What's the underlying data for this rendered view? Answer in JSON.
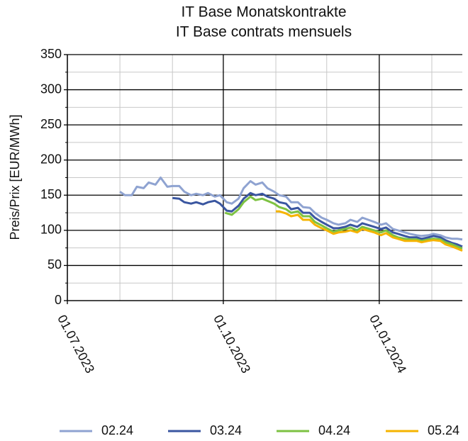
{
  "chart_data": {
    "type": "line",
    "title": "IT Base Monatskontrakte",
    "subtitle": "IT Base contrats mensuels",
    "y_label": "Preis/Prix [EUR/MWh]",
    "xlim": [
      "01.07.2023",
      "19.02.2024"
    ],
    "xticks": [
      "01.07.2023",
      "01.10.2023",
      "01.01.2024"
    ],
    "xminorticks": [
      "01.08.2023",
      "01.09.2023",
      "01.11.2023",
      "01.12.2023",
      "01.02.2024"
    ],
    "ylim": [
      0,
      350
    ],
    "yticks": [
      0,
      50,
      100,
      150,
      200,
      250,
      300,
      350
    ],
    "yminorticks": [
      25,
      75,
      125,
      175,
      225,
      275,
      325
    ],
    "grid": true,
    "legend": "bottom",
    "series": [
      {
        "name": "02.24",
        "color": "#8fa3d1",
        "x": [
          "01.08.2023",
          "04.08.2023",
          "08.08.2023",
          "11.08.2023",
          "15.08.2023",
          "18.08.2023",
          "22.08.2023",
          "25.08.2023",
          "29.08.2023",
          "01.09.2023",
          "05.09.2023",
          "08.09.2023",
          "12.09.2023",
          "15.09.2023",
          "19.09.2023",
          "22.09.2023",
          "26.09.2023",
          "29.09.2023",
          "03.10.2023",
          "06.10.2023",
          "10.10.2023",
          "13.10.2023",
          "17.10.2023",
          "20.10.2023",
          "24.10.2023",
          "27.10.2023",
          "31.10.2023",
          "03.11.2023",
          "07.11.2023",
          "10.11.2023",
          "14.11.2023",
          "17.11.2023",
          "21.11.2023",
          "24.11.2023",
          "28.11.2023",
          "01.12.2023",
          "05.12.2023",
          "08.12.2023",
          "12.12.2023",
          "15.12.2023",
          "19.12.2023",
          "22.12.2023",
          "29.12.2023",
          "02.01.2024",
          "05.01.2024",
          "09.01.2024",
          "12.01.2024",
          "16.01.2024",
          "19.01.2024",
          "23.01.2024",
          "26.01.2024",
          "30.01.2024",
          "02.02.2024",
          "06.02.2024",
          "09.02.2024",
          "13.02.2024",
          "16.02.2024",
          "19.02.2024"
        ],
        "values": [
          155,
          150,
          150,
          162,
          160,
          168,
          165,
          175,
          162,
          163,
          163,
          155,
          150,
          152,
          150,
          153,
          148,
          150,
          140,
          138,
          145,
          160,
          170,
          165,
          168,
          160,
          155,
          150,
          148,
          140,
          140,
          133,
          132,
          125,
          118,
          115,
          110,
          108,
          110,
          115,
          112,
          118,
          112,
          108,
          110,
          102,
          100,
          97,
          95,
          93,
          92,
          93,
          95,
          93,
          90,
          88,
          88,
          87
        ]
      },
      {
        "name": "03.24",
        "color": "#3a56a0",
        "x": [
          "01.09.2023",
          "05.09.2023",
          "08.09.2023",
          "12.09.2023",
          "15.09.2023",
          "19.09.2023",
          "22.09.2023",
          "26.09.2023",
          "29.09.2023",
          "03.10.2023",
          "06.10.2023",
          "10.10.2023",
          "13.10.2023",
          "17.10.2023",
          "20.10.2023",
          "24.10.2023",
          "27.10.2023",
          "31.10.2023",
          "03.11.2023",
          "07.11.2023",
          "10.11.2023",
          "14.11.2023",
          "17.11.2023",
          "21.11.2023",
          "24.11.2023",
          "28.11.2023",
          "01.12.2023",
          "05.12.2023",
          "08.12.2023",
          "12.12.2023",
          "15.12.2023",
          "19.12.2023",
          "22.12.2023",
          "29.12.2023",
          "02.01.2024",
          "05.01.2024",
          "09.01.2024",
          "12.01.2024",
          "16.01.2024",
          "19.01.2024",
          "23.01.2024",
          "26.01.2024",
          "30.01.2024",
          "02.02.2024",
          "06.02.2024",
          "09.02.2024",
          "13.02.2024",
          "16.02.2024",
          "19.02.2024"
        ],
        "values": [
          146,
          145,
          140,
          138,
          140,
          137,
          140,
          142,
          138,
          128,
          127,
          135,
          145,
          153,
          150,
          152,
          148,
          145,
          140,
          138,
          130,
          132,
          125,
          125,
          118,
          112,
          108,
          103,
          103,
          105,
          108,
          105,
          110,
          105,
          102,
          104,
          97,
          95,
          92,
          90,
          90,
          88,
          90,
          92,
          90,
          86,
          82,
          80,
          77
        ]
      },
      {
        "name": "04.24",
        "color": "#7dc242",
        "x": [
          "02.10.2023",
          "06.10.2023",
          "10.10.2023",
          "13.10.2023",
          "17.10.2023",
          "20.10.2023",
          "24.10.2023",
          "27.10.2023",
          "31.10.2023",
          "03.11.2023",
          "07.11.2023",
          "10.11.2023",
          "14.11.2023",
          "17.11.2023",
          "21.11.2023",
          "24.11.2023",
          "28.11.2023",
          "01.12.2023",
          "05.12.2023",
          "08.12.2023",
          "12.12.2023",
          "15.12.2023",
          "19.12.2023",
          "22.12.2023",
          "29.12.2023",
          "02.01.2024",
          "05.01.2024",
          "09.01.2024",
          "12.01.2024",
          "16.01.2024",
          "19.01.2024",
          "23.01.2024",
          "26.01.2024",
          "30.01.2024",
          "02.02.2024",
          "06.02.2024",
          "09.02.2024",
          "13.02.2024",
          "16.02.2024",
          "19.02.2024"
        ],
        "values": [
          125,
          122,
          130,
          140,
          148,
          143,
          145,
          142,
          138,
          133,
          130,
          125,
          127,
          120,
          120,
          112,
          107,
          103,
          98,
          100,
          102,
          104,
          100,
          105,
          100,
          97,
          100,
          93,
          90,
          88,
          87,
          87,
          85,
          87,
          88,
          87,
          83,
          80,
          77,
          74
        ]
      },
      {
        "name": "05.24",
        "color": "#f5b400",
        "x": [
          "01.11.2023",
          "03.11.2023",
          "07.11.2023",
          "10.11.2023",
          "14.11.2023",
          "17.11.2023",
          "21.11.2023",
          "24.11.2023",
          "28.11.2023",
          "01.12.2023",
          "05.12.2023",
          "08.12.2023",
          "12.12.2023",
          "15.12.2023",
          "19.12.2023",
          "22.12.2023",
          "29.12.2023",
          "02.01.2024",
          "05.01.2024",
          "09.01.2024",
          "12.01.2024",
          "16.01.2024",
          "19.01.2024",
          "23.01.2024",
          "26.01.2024",
          "30.01.2024",
          "02.02.2024",
          "06.02.2024",
          "09.02.2024",
          "13.02.2024",
          "16.02.2024",
          "19.02.2024"
        ],
        "values": [
          127,
          127,
          124,
          120,
          122,
          115,
          115,
          108,
          103,
          100,
          95,
          97,
          98,
          100,
          97,
          102,
          97,
          93,
          96,
          90,
          88,
          85,
          85,
          85,
          83,
          85,
          86,
          85,
          80,
          77,
          74,
          71
        ]
      }
    ]
  }
}
